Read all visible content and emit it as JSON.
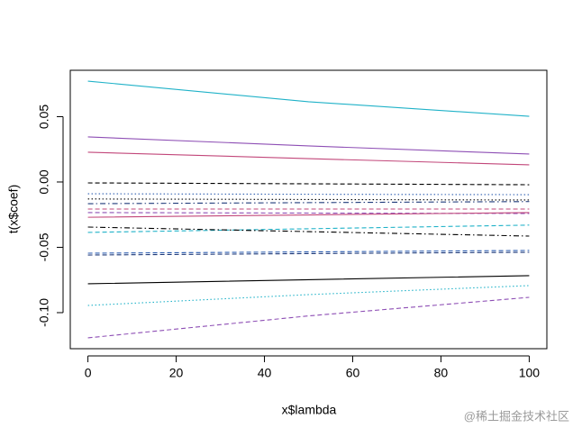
{
  "chart_data": {
    "type": "line",
    "x_label": "x$lambda",
    "y_label": "t(x$coef)",
    "x": [
      0,
      50,
      100
    ],
    "xlim": [
      -4,
      104
    ],
    "ylim": [
      -0.1276,
      0.0855
    ],
    "xticks": [
      0,
      20,
      40,
      60,
      80,
      100
    ],
    "yticks": [
      {
        "value": -0.1,
        "label": "-0.10"
      },
      -0.05,
      {
        "value": 0,
        "label": "0.00"
      },
      0.05
    ],
    "series": [
      {
        "color": "#20b2c8",
        "dash": "solid",
        "values": [
          0.0772,
          0.0614,
          0.0503
        ]
      },
      {
        "color": "#8e4fb5",
        "dash": "solid",
        "values": [
          0.0345,
          0.0276,
          0.0214
        ]
      },
      {
        "color": "#c2477a",
        "dash": "solid",
        "values": [
          0.0228,
          0.0179,
          0.0131
        ]
      },
      {
        "color": "#000000",
        "dash": "dashed",
        "values": [
          -0.0007,
          -0.0014,
          -0.0021
        ]
      },
      {
        "color": "#2f5fb0",
        "dash": "dotted",
        "values": [
          -0.009,
          -0.0094,
          -0.0097
        ]
      },
      {
        "color": "#000000",
        "dash": "dotted",
        "values": [
          -0.013,
          -0.0134,
          -0.0138
        ]
      },
      {
        "color": "#1f3a7a",
        "dash": "dashdot",
        "values": [
          -0.0166,
          -0.0158,
          -0.015
        ]
      },
      {
        "color": "#c2477a",
        "dash": "dashed",
        "values": [
          -0.0207,
          -0.0207,
          -0.0207
        ]
      },
      {
        "color": "#8e4fb5",
        "dash": "dashed",
        "values": [
          -0.0234,
          -0.0238,
          -0.0241
        ]
      },
      {
        "color": "#c2477a",
        "dash": "solid",
        "values": [
          -0.027,
          -0.0252,
          -0.0234
        ]
      },
      {
        "color": "#20b2c8",
        "dash": "dashed",
        "values": [
          -0.0386,
          -0.0358,
          -0.033
        ]
      },
      {
        "color": "#000000",
        "dash": "dashdot",
        "values": [
          -0.0345,
          -0.038,
          -0.0414
        ]
      },
      {
        "color": "#2f5fb0",
        "dash": "dashed",
        "values": [
          -0.0545,
          -0.0535,
          -0.0524
        ]
      },
      {
        "color": "#1f3a7a",
        "dash": "dashed",
        "values": [
          -0.0559,
          -0.0548,
          -0.0538
        ]
      },
      {
        "color": "#000000",
        "dash": "solid",
        "values": [
          -0.0779,
          -0.0748,
          -0.0717
        ]
      },
      {
        "color": "#20b2c8",
        "dash": "dotted",
        "values": [
          -0.0945,
          -0.0862,
          -0.0793
        ]
      },
      {
        "color": "#8e4fb5",
        "dash": "dashed",
        "values": [
          -0.1193,
          -0.1025,
          -0.0883
        ]
      }
    ]
  },
  "watermark": "@稀土掘金技术社区"
}
